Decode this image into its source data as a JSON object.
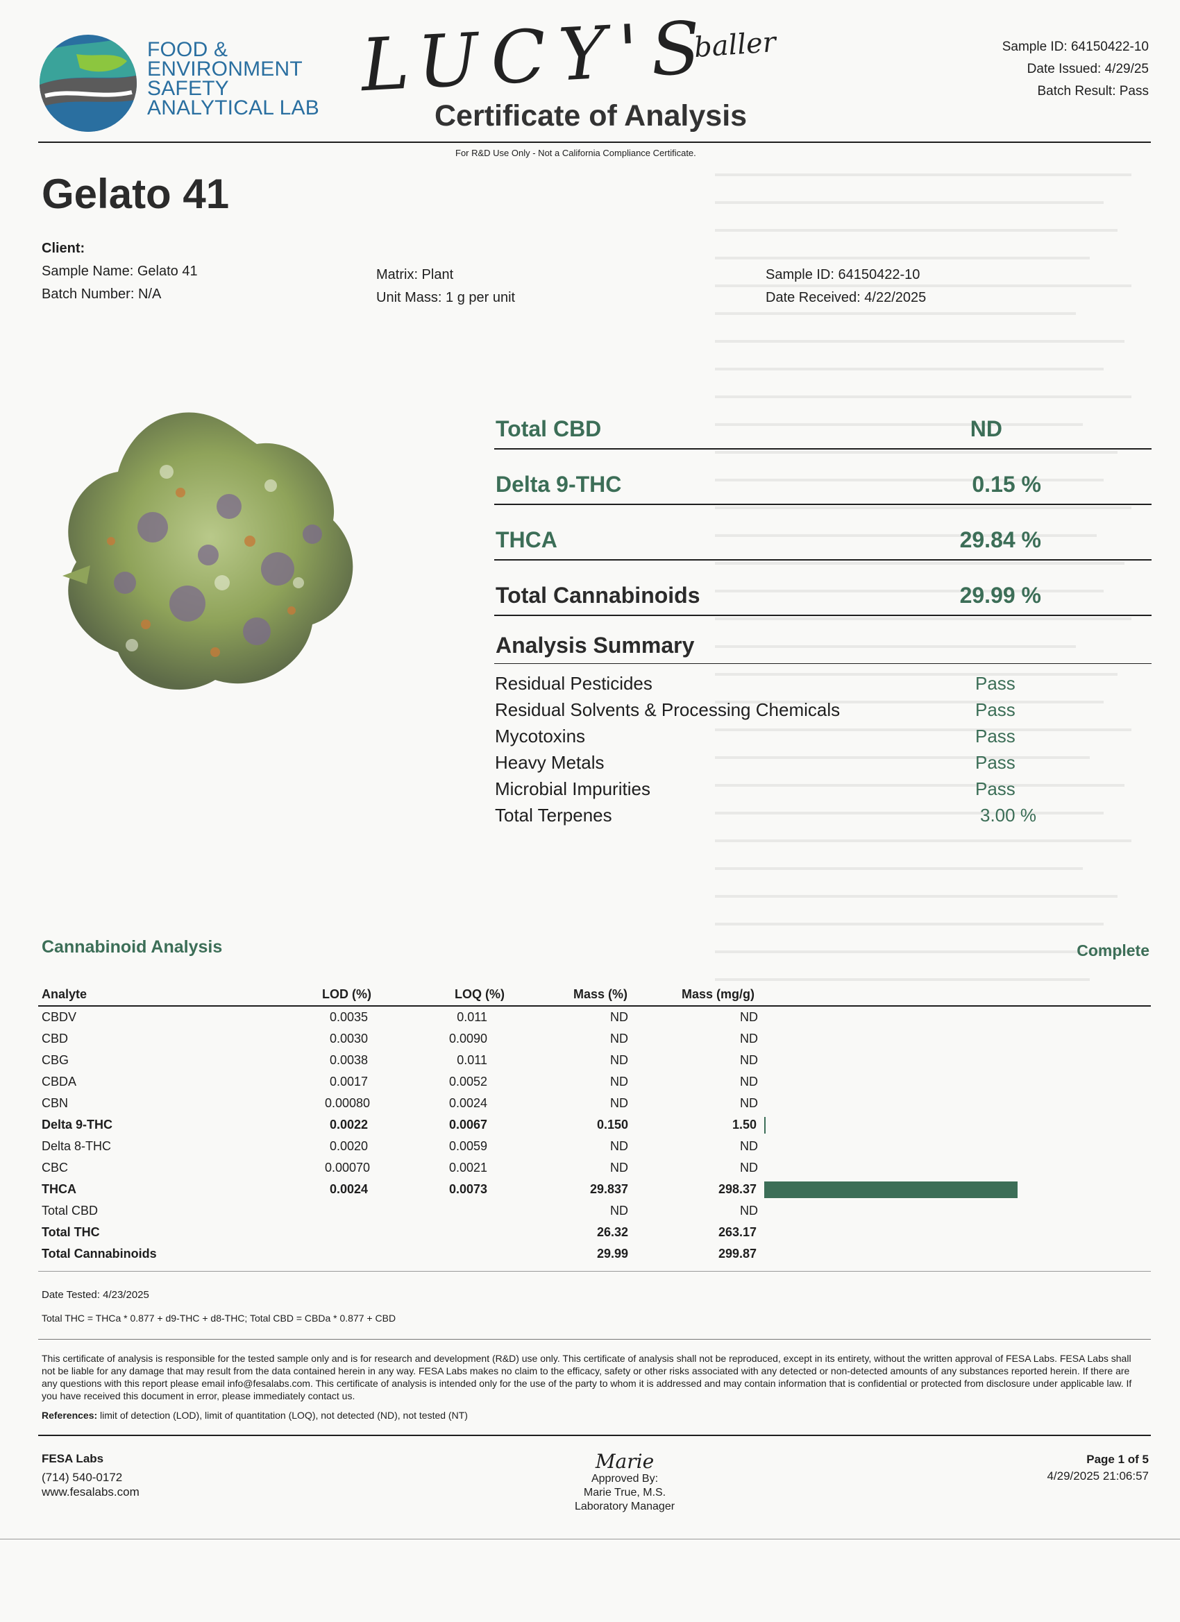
{
  "header": {
    "logo_lines": [
      "FOOD &",
      "ENVIRONMENT",
      "SAFETY",
      "ANALYTICAL LAB"
    ],
    "handwritten_name": "LUCY'S",
    "handwritten_note": "baller",
    "sample_id": "Sample ID: 64150422-10",
    "date_issued": "Date Issued: 4/29/25",
    "batch_result": "Batch Result: Pass",
    "title": "Certificate of Analysis",
    "subtitle": "For R&D Use Only - Not a California Compliance Certificate."
  },
  "strain_name": "Gelato 41",
  "client": {
    "label": "Client:",
    "sample_name": "Sample Name: Gelato 41",
    "batch_number": "Batch Number: N/A",
    "matrix": "Matrix: Plant",
    "unit_mass": "Unit Mass: 1 g per unit",
    "sample_id": "Sample ID: 64150422-10",
    "date_received": "Date Received: 4/22/2025"
  },
  "colors": {
    "accent": "#3c6e57",
    "logo_blue": "#2a6fa0",
    "logo_teal": "#3aa39a"
  },
  "headline_results": [
    {
      "label": "Total CBD",
      "value": "ND"
    },
    {
      "label": "Delta 9-THC",
      "value": "0.15 %"
    },
    {
      "label": "THCA",
      "value": "29.84 %"
    },
    {
      "label": "Total Cannabinoids",
      "value": "29.99 %"
    }
  ],
  "analysis_summary": {
    "title": "Analysis Summary",
    "items": [
      {
        "label": "Residual Pesticides",
        "value": "Pass"
      },
      {
        "label": "Residual Solvents & Processing Chemicals",
        "value": "Pass"
      },
      {
        "label": "Mycotoxins",
        "value": "Pass"
      },
      {
        "label": "Heavy Metals",
        "value": "Pass"
      },
      {
        "label": "Microbial Impurities",
        "value": "Pass"
      },
      {
        "label": "Total Terpenes",
        "value": "3.00  %"
      }
    ]
  },
  "cannabinoid_analysis": {
    "title": "Cannabinoid Analysis",
    "status": "Complete",
    "columns": [
      "Analyte",
      "LOD (%)",
      "LOQ (%)",
      "Mass (%)",
      "Mass (mg/g)"
    ],
    "rows": [
      {
        "analyte": "CBDV",
        "lod": "0.0035",
        "loq": "0.011",
        "mass_pct": "ND",
        "mass_mg": "ND",
        "bold": false,
        "bar_fraction": 0
      },
      {
        "analyte": "CBD",
        "lod": "0.0030",
        "loq": "0.0090",
        "mass_pct": "ND",
        "mass_mg": "ND",
        "bold": false,
        "bar_fraction": 0
      },
      {
        "analyte": "CBG",
        "lod": "0.0038",
        "loq": "0.011",
        "mass_pct": "ND",
        "mass_mg": "ND",
        "bold": false,
        "bar_fraction": 0
      },
      {
        "analyte": "CBDA",
        "lod": "0.0017",
        "loq": "0.0052",
        "mass_pct": "ND",
        "mass_mg": "ND",
        "bold": false,
        "bar_fraction": 0
      },
      {
        "analyte": "CBN",
        "lod": "0.00080",
        "loq": "0.0024",
        "mass_pct": "ND",
        "mass_mg": "ND",
        "bold": false,
        "bar_fraction": 0
      },
      {
        "analyte": "Delta 9-THC",
        "lod": "0.0022",
        "loq": "0.0067",
        "mass_pct": "0.150",
        "mass_mg": "1.50",
        "bold": true,
        "bar_fraction": 0.005
      },
      {
        "analyte": "Delta 8-THC",
        "lod": "0.0020",
        "loq": "0.0059",
        "mass_pct": "ND",
        "mass_mg": "ND",
        "bold": false,
        "bar_fraction": 0
      },
      {
        "analyte": "CBC",
        "lod": "0.00070",
        "loq": "0.0021",
        "mass_pct": "ND",
        "mass_mg": "ND",
        "bold": false,
        "bar_fraction": 0
      },
      {
        "analyte": "THCA",
        "lod": "0.0024",
        "loq": "0.0073",
        "mass_pct": "29.837",
        "mass_mg": "298.37",
        "bold": true,
        "bar_fraction": 1
      },
      {
        "analyte": "Total CBD",
        "lod": "",
        "loq": "",
        "mass_pct": "ND",
        "mass_mg": "ND",
        "bold": false,
        "bar_fraction": 0
      },
      {
        "analyte": "Total THC",
        "lod": "",
        "loq": "",
        "mass_pct": "26.32",
        "mass_mg": "263.17",
        "bold": true,
        "bar_fraction": 0
      },
      {
        "analyte": "Total Cannabinoids",
        "lod": "",
        "loq": "",
        "mass_pct": "29.99",
        "mass_mg": "299.87",
        "bold": true,
        "bar_fraction": 0
      }
    ],
    "date_tested": "Date Tested: 4/23/2025",
    "formula": "Total THC = THCa * 0.877 + d9-THC + d8-THC; Total CBD = CBDa * 0.877 + CBD"
  },
  "disclaimer": "This certificate of analysis is responsible for the tested sample only and is for research and development (R&D) use only. This certificate of analysis shall not be reproduced, except in its entirety, without the written approval of FESA Labs. FESA Labs shall not be liable for any damage that may result from the data contained herein in any way. FESA Labs makes no claim to the efficacy, safety or other risks associated with any detected or non-detected amounts of any substances reported herein. If there are any questions with this report please email info@fesalabs.com. This certificate of analysis is intended only for the use of the party to whom it is addressed and may contain information that is confidential or protected from disclosure under applicable law. If you have received this document in error, please immediately contact us.",
  "references": {
    "label": "References:",
    "text": "limit of detection (LOD), limit of quantitation (LOQ), not detected (ND), not tested (NT)"
  },
  "footer": {
    "lab_name": "FESA Labs",
    "phone": "(714) 540-0172",
    "website": "www.fesalabs.com",
    "signature": "Marie",
    "approved_by": "Approved By:",
    "approver": "Marie True, M.S.",
    "approver_title": "Laboratory Manager",
    "page": "Page 1 of 5",
    "timestamp": "4/29/2025 21:06:57"
  }
}
